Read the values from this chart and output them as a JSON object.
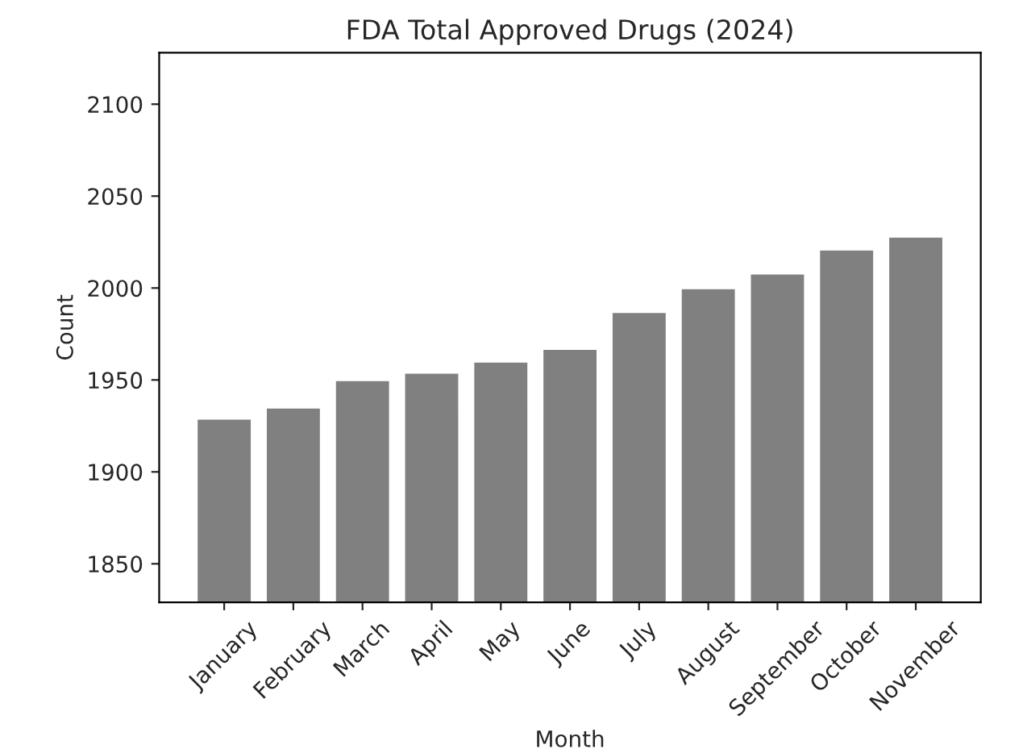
{
  "chart_data": {
    "type": "bar",
    "title": "FDA Total Approved Drugs (2024)",
    "xlabel": "Month",
    "ylabel": "Count",
    "categories": [
      "January",
      "February",
      "March",
      "April",
      "May",
      "June",
      "July",
      "August",
      "September",
      "October",
      "November"
    ],
    "values": [
      1929,
      1935,
      1950,
      1954,
      1960,
      1967,
      1987,
      2000,
      2008,
      2021,
      2028
    ],
    "color": "#808080",
    "ylim": [
      1829,
      2128
    ],
    "yticks": [
      1850,
      1900,
      1950,
      2000,
      2050,
      2100
    ],
    "grid": false
  }
}
